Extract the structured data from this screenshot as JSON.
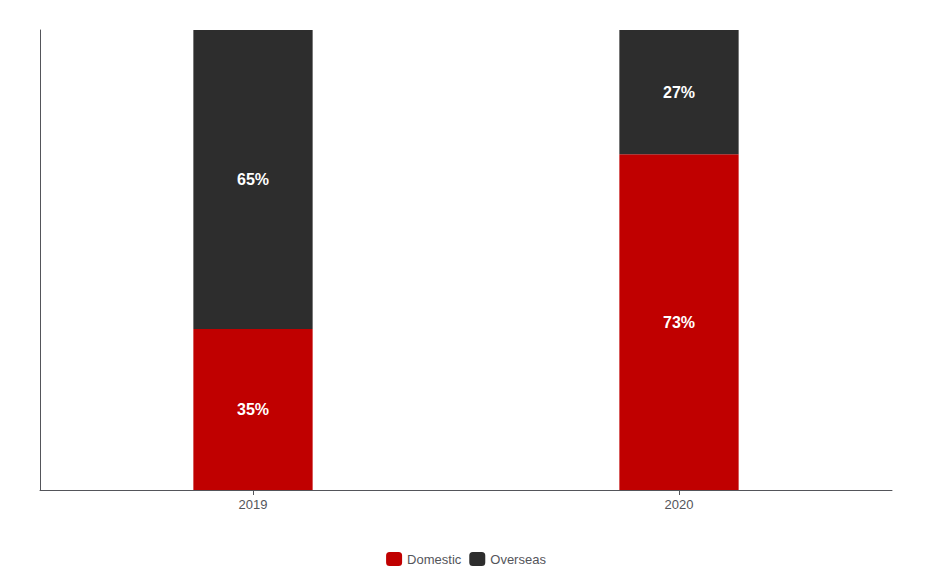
{
  "chart_data": {
    "type": "bar",
    "stacked": true,
    "categories": [
      "2019",
      "2020"
    ],
    "series": [
      {
        "name": "Domestic",
        "color": "#c00000",
        "values": [
          35,
          73
        ],
        "value_labels": [
          "35%",
          "73%"
        ]
      },
      {
        "name": "Overseas",
        "color": "#2d2d2d",
        "values": [
          65,
          27
        ],
        "value_labels": [
          "65%",
          "27%"
        ]
      }
    ],
    "ylim": [
      0,
      100
    ],
    "yticks": [],
    "tick_labels": "x",
    "data_labels": true,
    "legend": "bottom",
    "grid": false
  }
}
